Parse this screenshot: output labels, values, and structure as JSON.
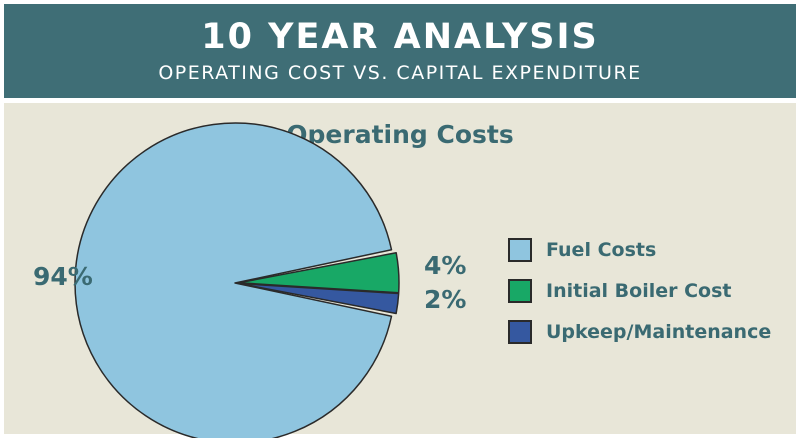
{
  "header": {
    "title": "10 YEAR ANALYSIS",
    "subtitle": "OPERATING COST VS. CAPITAL EXPENDITURE"
  },
  "chart_data": {
    "type": "pie",
    "title": "Operating Costs",
    "legend_position": "right",
    "slices": [
      {
        "label": "Fuel Costs",
        "value": 94,
        "display": "94%",
        "color": "#8fc5df"
      },
      {
        "label": "Initial Boiler Cost",
        "value": 4,
        "display": "4%",
        "color": "#18a866"
      },
      {
        "label": "Upkeep/Maintenance",
        "value": 2,
        "display": "2%",
        "color": "#3558a0"
      }
    ]
  }
}
